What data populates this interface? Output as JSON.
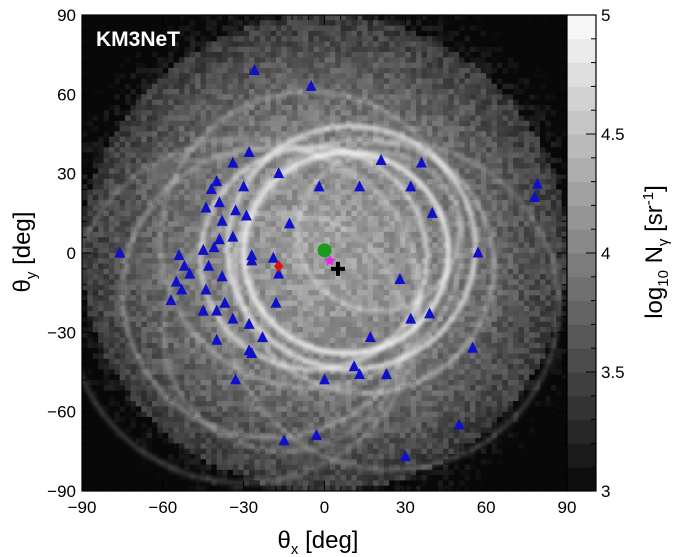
{
  "chart_data": {
    "type": "heatmap",
    "title": "KM3NeT",
    "xlabel": {
      "main": "θ",
      "sub": "x",
      "unit": " [deg]"
    },
    "ylabel": {
      "main": "θ",
      "sub": "y",
      "unit": " [deg]"
    },
    "zlabel": {
      "log": "log",
      "log_sub": "10",
      "n": " N",
      "n_sub": "γ",
      "unit": " [sr",
      "unit_sup": "-1",
      "close": "]"
    },
    "xlim": [
      -90,
      90
    ],
    "ylim": [
      -90,
      90
    ],
    "zlim": [
      3,
      5
    ],
    "x_ticks": [
      -90,
      -60,
      -30,
      0,
      30,
      60,
      90
    ],
    "x_tick_labels": [
      "−90",
      "−60",
      "−30",
      "0",
      "30",
      "60",
      "90"
    ],
    "y_ticks": [
      -90,
      -60,
      -30,
      0,
      30,
      60,
      90
    ],
    "y_tick_labels": [
      "−90",
      "−60",
      "−30",
      "0",
      "30",
      "60",
      "90"
    ],
    "z_ticks": [
      3,
      3.5,
      4,
      4.5,
      5
    ],
    "z_tick_labels": [
      "3",
      "3.5",
      "4",
      "4.5",
      "5"
    ],
    "colormap": "grayscale",
    "markers": {
      "triangles": {
        "color": "#1010c8",
        "points": [
          [
            -26,
            69
          ],
          [
            -5,
            63
          ],
          [
            -28,
            38
          ],
          [
            -34,
            34
          ],
          [
            36,
            34
          ],
          [
            21,
            35
          ],
          [
            -40,
            27
          ],
          [
            -42,
            24
          ],
          [
            -30,
            25
          ],
          [
            -17,
            30
          ],
          [
            13,
            25
          ],
          [
            -2,
            25
          ],
          [
            32,
            25
          ],
          [
            79,
            26
          ],
          [
            78,
            21
          ],
          [
            -39,
            19
          ],
          [
            -44,
            17
          ],
          [
            -33,
            16
          ],
          [
            -29,
            14
          ],
          [
            -38,
            12
          ],
          [
            40,
            15
          ],
          [
            -13,
            11
          ],
          [
            -39,
            5
          ],
          [
            -34,
            6
          ],
          [
            -41,
            2
          ],
          [
            -76,
            0
          ],
          [
            -54,
            -1
          ],
          [
            -27,
            -1
          ],
          [
            -45,
            1
          ],
          [
            -19,
            -2
          ],
          [
            -17,
            -8
          ],
          [
            57,
            0
          ],
          [
            -27,
            -3
          ],
          [
            -43,
            -5
          ],
          [
            -52,
            -5
          ],
          [
            -50,
            -8
          ],
          [
            -38,
            -9
          ],
          [
            -55,
            -11
          ],
          [
            -53,
            -14
          ],
          [
            -44,
            -14
          ],
          [
            -57,
            -18
          ],
          [
            -37,
            -19
          ],
          [
            -18,
            -19
          ],
          [
            28,
            -10
          ],
          [
            -45,
            -22
          ],
          [
            -40,
            -22
          ],
          [
            -34,
            -25
          ],
          [
            -28,
            -27
          ],
          [
            39,
            -23
          ],
          [
            32,
            -25
          ],
          [
            -40,
            -33
          ],
          [
            -23,
            -32
          ],
          [
            17,
            -32
          ],
          [
            55,
            -36
          ],
          [
            -27,
            -38
          ],
          [
            -28,
            -37
          ],
          [
            -33,
            -48
          ],
          [
            0,
            -48
          ],
          [
            11,
            -43
          ],
          [
            13,
            -46
          ],
          [
            23,
            -46
          ],
          [
            50,
            -65
          ],
          [
            -15,
            -71
          ],
          [
            -3,
            -69
          ],
          [
            30,
            -77
          ]
        ]
      },
      "circle": {
        "color": "#1a9c1a",
        "x": 0,
        "y": 1
      },
      "star": {
        "color": "#ee22ee",
        "x": 2,
        "y": -3
      },
      "cross": {
        "color": "#000000",
        "x": 5,
        "y": -6
      },
      "diamond": {
        "color": "#dd1111",
        "x": -17,
        "y": -5
      }
    }
  }
}
